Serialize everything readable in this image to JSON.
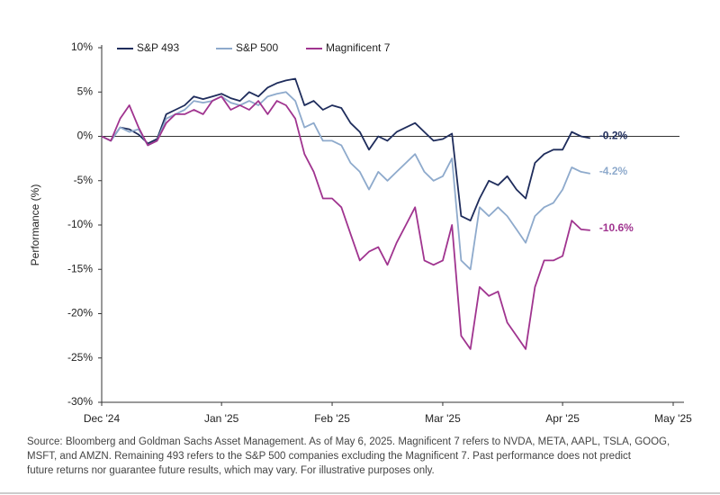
{
  "chart_data": {
    "type": "line",
    "y_label": "Performance (%)",
    "categories": [
      "Dec '24",
      null,
      null,
      null,
      null,
      null,
      null,
      null,
      null,
      null,
      null,
      null,
      null,
      "Jan '25",
      null,
      null,
      null,
      null,
      null,
      null,
      null,
      null,
      null,
      null,
      null,
      "Feb '25",
      null,
      null,
      null,
      null,
      null,
      null,
      null,
      null,
      null,
      null,
      null,
      "Mar '25",
      null,
      null,
      null,
      null,
      null,
      null,
      null,
      null,
      null,
      null,
      null,
      null,
      "Apr '25",
      null,
      null,
      null,
      null,
      null,
      null,
      null,
      null,
      null,
      null,
      null,
      "May '25"
    ],
    "series": [
      {
        "name": "S&P 493",
        "color": "#1f2d5c",
        "end_label": "-0.2%",
        "values": [
          0,
          -0.5,
          1,
          0.8,
          0.2,
          -0.8,
          -0.3,
          2.5,
          3,
          3.5,
          4.5,
          4.2,
          4.5,
          4.8,
          4.3,
          4,
          5,
          4.5,
          5.5,
          6,
          6.3,
          6.5,
          3.5,
          4,
          3,
          3.5,
          3.2,
          1.5,
          0.5,
          -1.5,
          0,
          -0.5,
          0.5,
          1,
          1.5,
          0.5,
          -0.5,
          -0.3,
          0.3,
          -9,
          -9.5,
          -7,
          -5,
          -5.5,
          -4.5,
          -6,
          -7,
          -3,
          -2,
          -1.5,
          -1.5,
          0.5,
          0,
          -0.2,
          null,
          null,
          null,
          null,
          null,
          null,
          null,
          null,
          null
        ]
      },
      {
        "name": "S&P 500",
        "color": "#8eaacc",
        "end_label": "-4.2%",
        "values": [
          0,
          -0.5,
          1,
          0.5,
          0.8,
          -1,
          -0.5,
          2,
          2.5,
          3,
          4,
          3.8,
          4,
          4.5,
          3.8,
          3.5,
          4,
          3.5,
          4.5,
          4.8,
          5,
          4,
          1,
          1.5,
          -0.5,
          -0.5,
          -1,
          -3,
          -4,
          -6,
          -4,
          -5,
          -4,
          -3,
          -2,
          -4,
          -5,
          -4.5,
          -2.5,
          -14,
          -15,
          -8,
          -9,
          -8,
          -9,
          -10.5,
          -12,
          -9,
          -8,
          -7.5,
          -6,
          -3.5,
          -4,
          -4.2,
          null,
          null,
          null,
          null,
          null,
          null,
          null,
          null,
          null
        ]
      },
      {
        "name": "Magnificent 7",
        "color": "#a0348f",
        "end_label": "-10.6%",
        "values": [
          0,
          -0.5,
          2,
          3.5,
          1,
          -1,
          -0.5,
          1.5,
          2.5,
          2.5,
          3,
          2.5,
          4,
          4.5,
          3,
          3.5,
          3,
          4,
          2.5,
          4,
          3.5,
          2,
          -2,
          -4,
          -7,
          -7,
          -8,
          -11,
          -14,
          -13,
          -12.5,
          -14.5,
          -12,
          -10,
          -8,
          -14,
          -14.5,
          -14,
          -10,
          -22.5,
          -24,
          -17,
          -18,
          -17.5,
          -21,
          -22.5,
          -24,
          -17,
          -14,
          -14,
          -13.5,
          -9.5,
          -10.5,
          -10.6,
          null,
          null,
          null,
          null,
          null,
          null,
          null,
          null,
          null
        ]
      }
    ],
    "ylim": [
      -30,
      10
    ],
    "yticks": [
      {
        "value": -30,
        "label": "-30%"
      },
      {
        "value": -25,
        "label": "-25%"
      },
      {
        "value": -20,
        "label": "-20%"
      },
      {
        "value": -15,
        "label": "-15%"
      },
      {
        "value": -10,
        "label": "-10%"
      },
      {
        "value": -5,
        "label": "-5%"
      },
      {
        "value": 0,
        "label": "0%"
      },
      {
        "value": 5,
        "label": "5%"
      },
      {
        "value": 10,
        "label": "10%"
      }
    ],
    "zero_line": true,
    "footnote": [
      "Source: Bloomberg and Goldman Sachs Asset Management. As of May 6, 2025.  Magnificent 7 refers to NVDA, META, AAPL, TSLA, GOOG,",
      "MSFT, and AMZN. Remaining 493 refers to the S&P 500 companies excluding the Magnificent 7. Past performance does not predict",
      "future returns nor guarantee future results, which may vary. For illustrative purposes only."
    ]
  }
}
